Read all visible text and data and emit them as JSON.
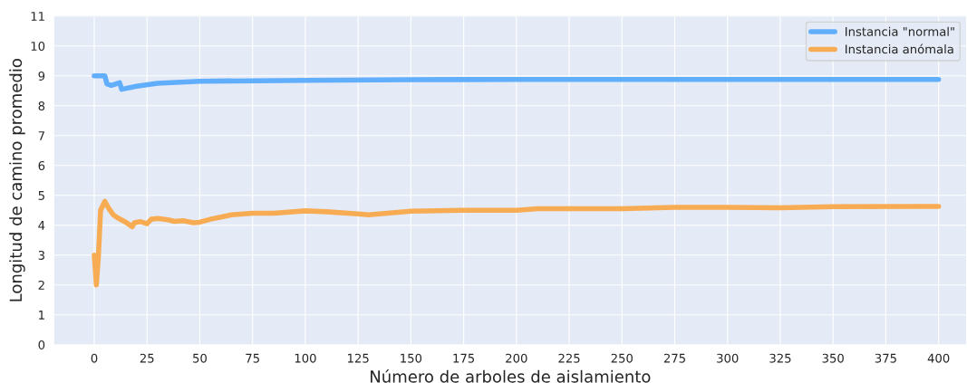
{
  "chart_data": {
    "type": "line",
    "xlabel": "Número de arboles de aislamiento",
    "ylabel": "Longitud de camino promedio",
    "xlim": [
      -19,
      413
    ],
    "ylim": [
      0,
      11
    ],
    "xticks": [
      0,
      25,
      50,
      75,
      100,
      125,
      150,
      175,
      200,
      225,
      250,
      275,
      300,
      325,
      350,
      375,
      400
    ],
    "yticks": [
      0,
      1,
      2,
      3,
      4,
      5,
      6,
      7,
      8,
      9,
      10,
      11
    ],
    "grid": true,
    "legend": "top right",
    "series": [
      {
        "name": "Instancia \"normal\"",
        "color": "#5aabfc",
        "x": [
          0,
          5,
          6,
          8,
          12,
          13,
          20,
          30,
          50,
          100,
          150,
          200,
          250,
          300,
          350,
          400
        ],
        "values": [
          9.0,
          9.0,
          8.73,
          8.68,
          8.77,
          8.55,
          8.65,
          8.75,
          8.82,
          8.85,
          8.87,
          8.88,
          8.88,
          8.88,
          8.88,
          8.88
        ]
      },
      {
        "name": "Instancia anómala",
        "color": "#f8a84a",
        "x": [
          0,
          1,
          2,
          3,
          5,
          7,
          9,
          11,
          15,
          18,
          19,
          22,
          25,
          27,
          30,
          35,
          38,
          42,
          47,
          50,
          55,
          60,
          65,
          75,
          85,
          100,
          110,
          125,
          130,
          150,
          175,
          200,
          210,
          250,
          275,
          300,
          325,
          350,
          400
        ],
        "values": [
          3.0,
          2.0,
          3.0,
          4.5,
          4.8,
          4.55,
          4.35,
          4.25,
          4.1,
          3.95,
          4.08,
          4.12,
          4.05,
          4.2,
          4.23,
          4.18,
          4.13,
          4.15,
          4.08,
          4.1,
          4.2,
          4.27,
          4.35,
          4.4,
          4.4,
          4.48,
          4.45,
          4.38,
          4.35,
          4.47,
          4.5,
          4.5,
          4.55,
          4.55,
          4.6,
          4.6,
          4.58,
          4.62,
          4.63
        ]
      }
    ]
  }
}
